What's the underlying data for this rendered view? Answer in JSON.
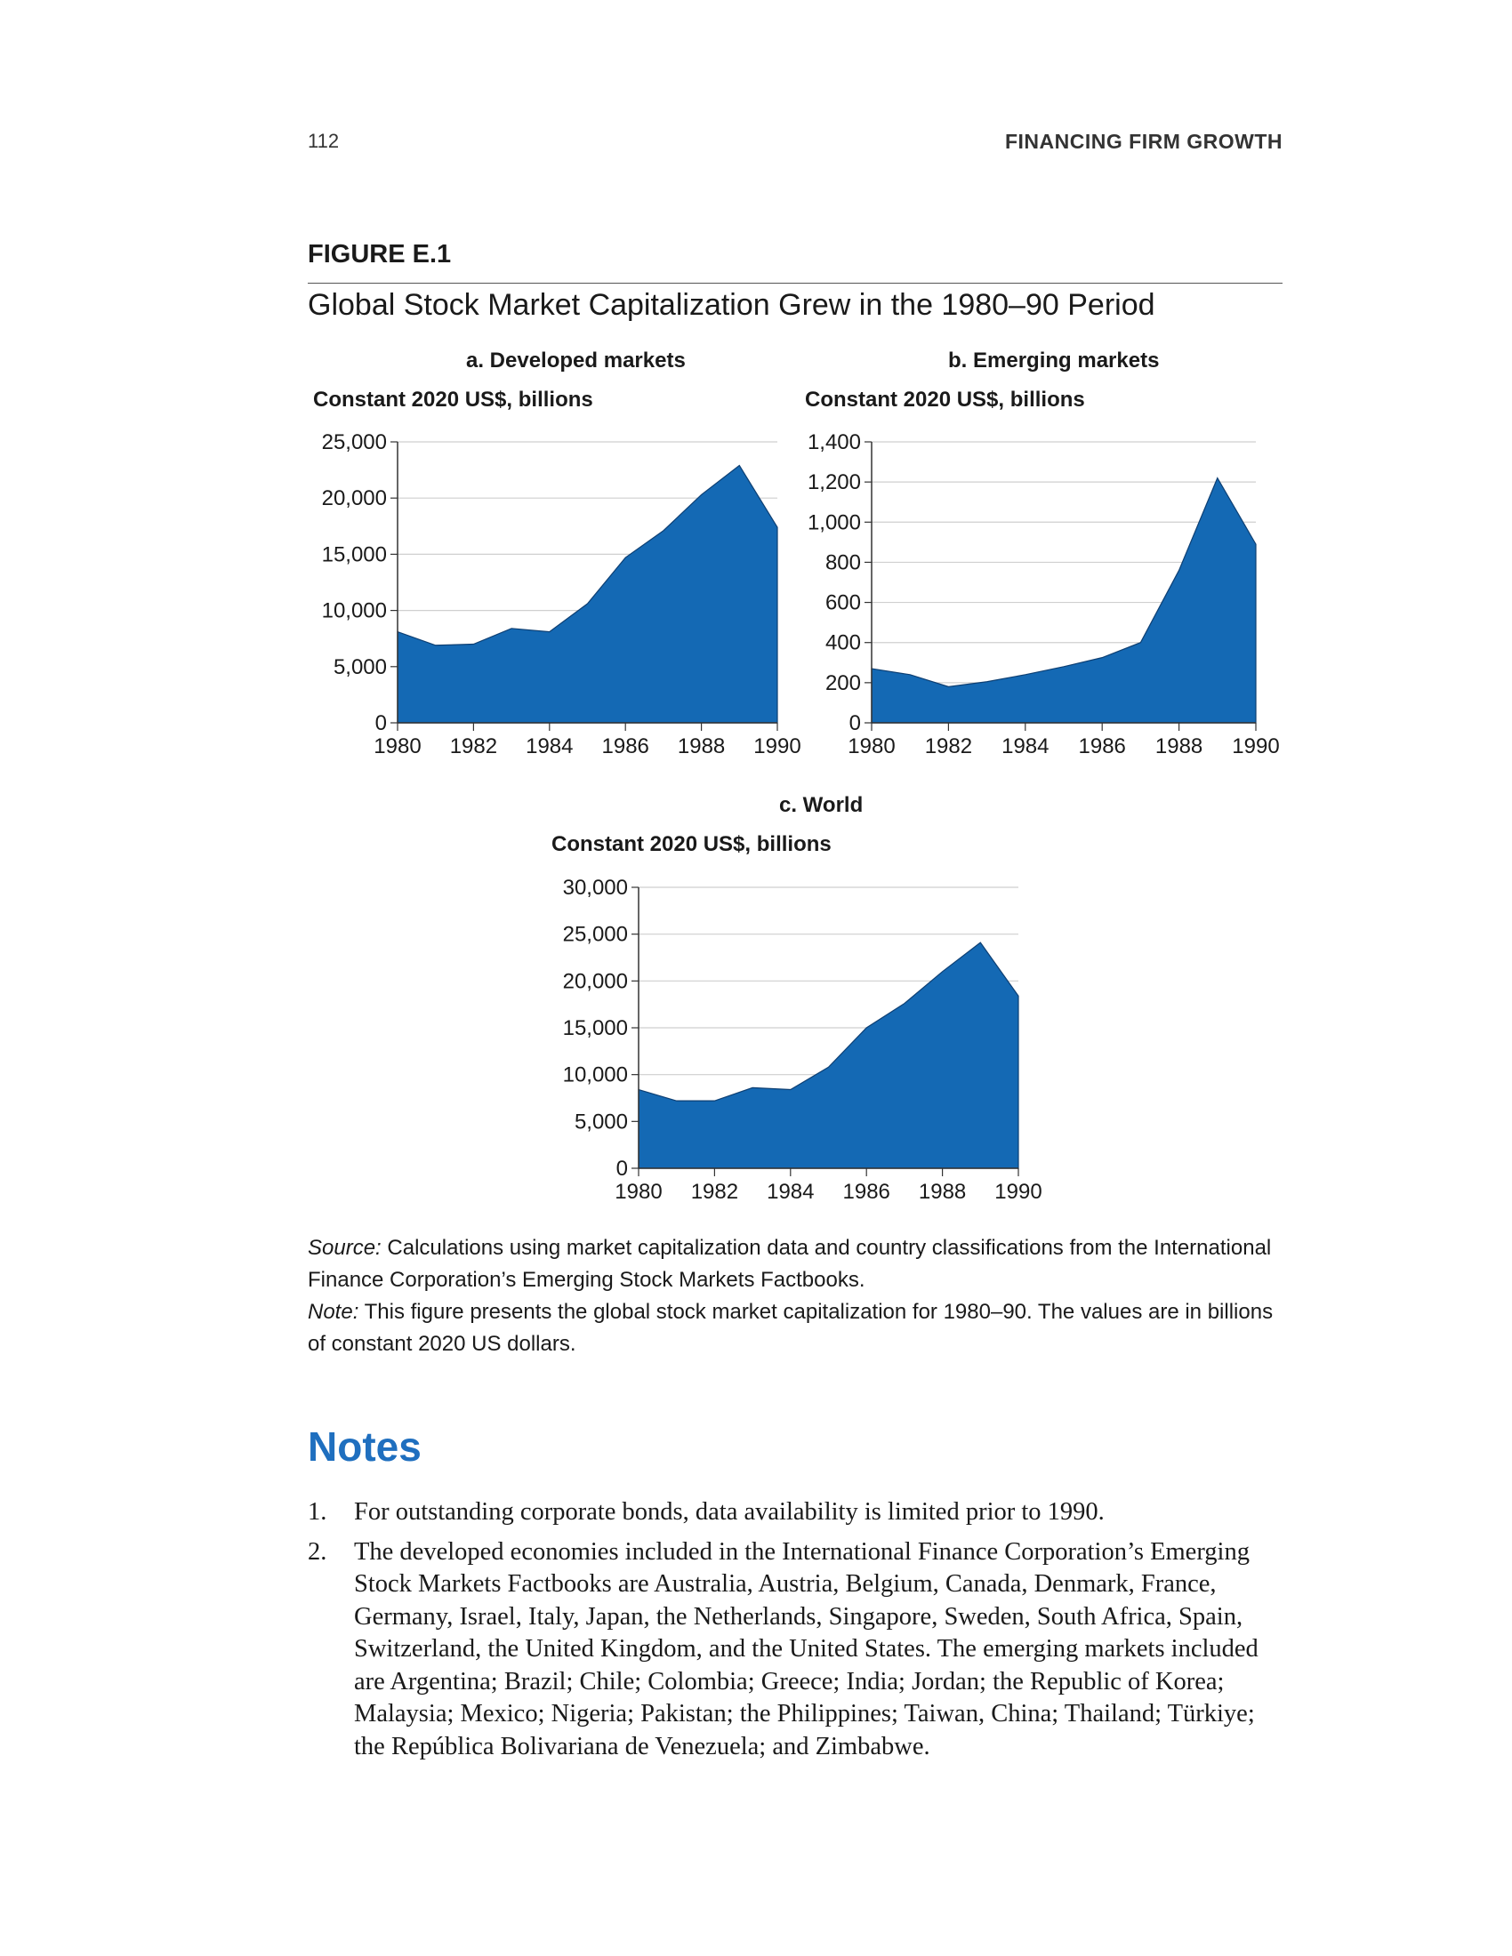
{
  "header": {
    "page_number": "112",
    "running_title": "FINANCING FIRM GROWTH"
  },
  "figure": {
    "label": "FIGURE E.1",
    "title": "Global Stock Market Capitalization Grew in the 1980–90 Period",
    "source_label": "Source:",
    "source_text": "Calculations using market capitalization data and country classifications from the International Finance Corporation’s Emerging Stock Markets Factbooks.",
    "note_label": "Note:",
    "note_text": "This figure presents the global stock market capitalization for 1980–90. The values are in billions of constant 2020 US dollars."
  },
  "chart_data": [
    {
      "type": "area",
      "title": "a. Developed markets",
      "ylabel": "Constant 2020 US$, billions",
      "x": [
        1980,
        1981,
        1982,
        1983,
        1984,
        1985,
        1986,
        1987,
        1988,
        1989,
        1990
      ],
      "values": [
        8100,
        6900,
        7000,
        8400,
        8100,
        10600,
        14700,
        17100,
        20300,
        22900,
        17400
      ],
      "xticks": [
        "1980",
        "1982",
        "1984",
        "1986",
        "1988",
        "1990"
      ],
      "yticks": [
        "0",
        "5,000",
        "10,000",
        "15,000",
        "20,000",
        "25,000"
      ],
      "ylim": [
        0,
        25000
      ],
      "grid": true,
      "color": "#1469b4"
    },
    {
      "type": "area",
      "title": "b. Emerging markets",
      "ylabel": "Constant 2020 US$, billions",
      "x": [
        1980,
        1981,
        1982,
        1983,
        1984,
        1985,
        1986,
        1987,
        1988,
        1989,
        1990
      ],
      "values": [
        270,
        240,
        180,
        205,
        240,
        280,
        325,
        400,
        760,
        1220,
        890
      ],
      "xticks": [
        "1980",
        "1982",
        "1984",
        "1986",
        "1988",
        "1990"
      ],
      "yticks": [
        "0",
        "200",
        "400",
        "600",
        "800",
        "1,000",
        "1,200",
        "1,400"
      ],
      "ylim": [
        0,
        1400
      ],
      "grid": true,
      "color": "#1469b4"
    },
    {
      "type": "area",
      "title": "c. World",
      "ylabel": "Constant 2020 US$, billions",
      "x": [
        1980,
        1981,
        1982,
        1983,
        1984,
        1985,
        1986,
        1987,
        1988,
        1989,
        1990
      ],
      "values": [
        8400,
        7200,
        7200,
        8600,
        8400,
        10800,
        15000,
        17600,
        21000,
        24100,
        18400
      ],
      "xticks": [
        "1980",
        "1982",
        "1984",
        "1986",
        "1988",
        "1990"
      ],
      "yticks": [
        "0",
        "5,000",
        "10,000",
        "15,000",
        "20,000",
        "25,000",
        "30,000"
      ],
      "ylim": [
        0,
        30000
      ],
      "grid": true,
      "color": "#1469b4"
    }
  ],
  "notes": {
    "heading": "Notes",
    "items": [
      {
        "number": "1.",
        "text": "For outstanding corporate bonds, data availability is limited prior to 1990."
      },
      {
        "number": "2.",
        "text": "The developed economies included in the International Finance Corporation’s Emerging Stock Markets Factbooks are Australia, Austria, Belgium, Canada, Denmark, France, Germany, Israel, Italy, Japan, the Netherlands, Singapore, Sweden, South Africa, Spain, Switzerland, the United Kingdom, and the United States. The emerging markets included are Argentina; Brazil; Chile; Colombia; Greece; India; Jordan; the Republic of Korea; Malaysia; Mexico; Nigeria; Pakistan; the Philippines; Taiwan, China; Thailand; Türkiye; the República Bolivariana de Venezuela; and Zimbabwe."
      }
    ]
  }
}
